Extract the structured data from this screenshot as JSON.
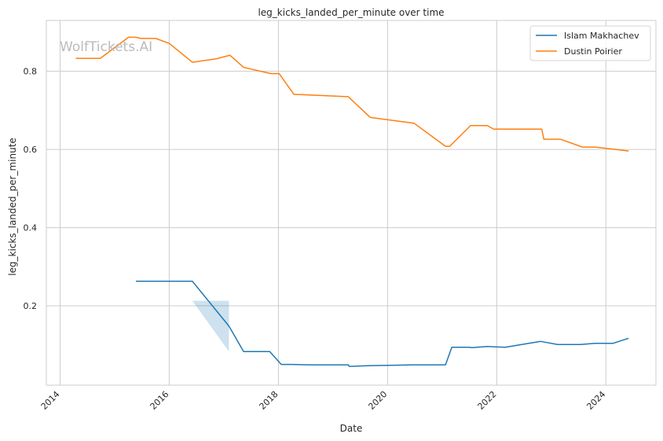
{
  "chart_data": {
    "type": "line",
    "title": "leg_kicks_landed_per_minute over time",
    "xlabel": "Date",
    "ylabel": "leg_kicks_landed_per_minute",
    "watermark": "WolfTickets.AI",
    "xlim": [
      "2013-10-01",
      "2024-12-01"
    ],
    "ylim": [
      -0.003,
      0.93
    ],
    "x_ticks": [
      "2014",
      "2016",
      "2018",
      "2020",
      "2022",
      "2024"
    ],
    "y_ticks": [
      "0.2",
      "0.4",
      "0.6",
      "0.8"
    ],
    "y_tick_values": [
      0.2,
      0.4,
      0.6,
      0.8
    ],
    "grid": true,
    "legend_position": "top-right",
    "series": [
      {
        "name": "Islam Makhachev",
        "color": "#1f77b4",
        "x": [
          "2015-05-23",
          "2016-06-04",
          "2017-02-04",
          "2017-05-13",
          "2017-11-04",
          "2018-01-20",
          "2018-04-07",
          "2018-08-04",
          "2019-04-13",
          "2019-04-20",
          "2019-09-07",
          "2020-06-20",
          "2021-01-23",
          "2021-03-06",
          "2021-07-03",
          "2021-07-17",
          "2021-10-30",
          "2022-02-26",
          "2022-10-22",
          "2023-02-12",
          "2023-07-15",
          "2023-10-21",
          "2024-02-17",
          "2024-06-01"
        ],
        "values": [
          0.263,
          0.263,
          0.148,
          0.083,
          0.083,
          0.05,
          0.05,
          0.049,
          0.049,
          0.045,
          0.047,
          0.049,
          0.049,
          0.094,
          0.094,
          0.093,
          0.096,
          0.094,
          0.109,
          0.101,
          0.101,
          0.104,
          0.104,
          0.117
        ],
        "band": {
          "x": [
            "2016-06-04",
            "2017-02-04"
          ],
          "lower": [
            0.213,
            0.083
          ],
          "upper": [
            0.213,
            0.213
          ]
        }
      },
      {
        "name": "Dustin Poirier",
        "color": "#ff7f0e",
        "x": [
          "2014-04-16",
          "2014-09-27",
          "2015-04-04",
          "2015-05-23",
          "2015-06-27",
          "2015-10-03",
          "2016-01-02",
          "2016-06-04",
          "2016-11-12",
          "2017-02-11",
          "2017-05-13",
          "2017-11-11",
          "2018-01-06",
          "2018-04-14",
          "2019-04-13",
          "2019-09-07",
          "2020-06-27",
          "2021-01-23",
          "2021-02-20",
          "2021-07-10",
          "2021-10-30",
          "2021-12-11",
          "2022-10-29",
          "2022-11-12",
          "2023-03-04",
          "2023-07-29",
          "2023-10-21",
          "2024-03-09",
          "2024-06-01"
        ],
        "values": [
          0.833,
          0.833,
          0.887,
          0.887,
          0.884,
          0.884,
          0.871,
          0.823,
          0.832,
          0.841,
          0.81,
          0.794,
          0.794,
          0.741,
          0.735,
          0.682,
          0.667,
          0.608,
          0.608,
          0.661,
          0.661,
          0.652,
          0.652,
          0.626,
          0.626,
          0.606,
          0.606,
          0.6,
          0.596
        ]
      }
    ]
  }
}
